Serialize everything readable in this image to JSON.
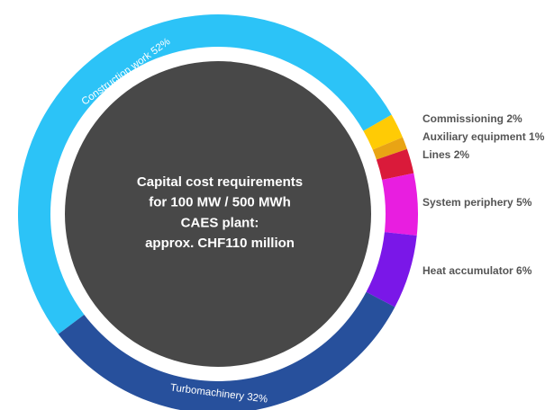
{
  "chart_data": {
    "type": "donut",
    "center_lines": [
      "Capital cost requirements",
      "for 100 MW / 500 MWh",
      "CAES plant:",
      "approx. CHF110 million"
    ],
    "categories": [
      "Construction work",
      "Commissioning",
      "Auxiliary equipment",
      "Lines",
      "System periphery",
      "Heat accumulator",
      "Turbomachinery"
    ],
    "values": [
      52,
      2,
      1,
      2,
      5,
      6,
      32
    ],
    "value_labels": [
      "52%",
      "2%",
      "1%",
      "2%",
      "5%",
      "6%",
      "32%"
    ],
    "colors": [
      "#2cc3f7",
      "#ffcb05",
      "#e9a414",
      "#da1a3a",
      "#e81ee0",
      "#7a17e8",
      "#27509c"
    ]
  }
}
